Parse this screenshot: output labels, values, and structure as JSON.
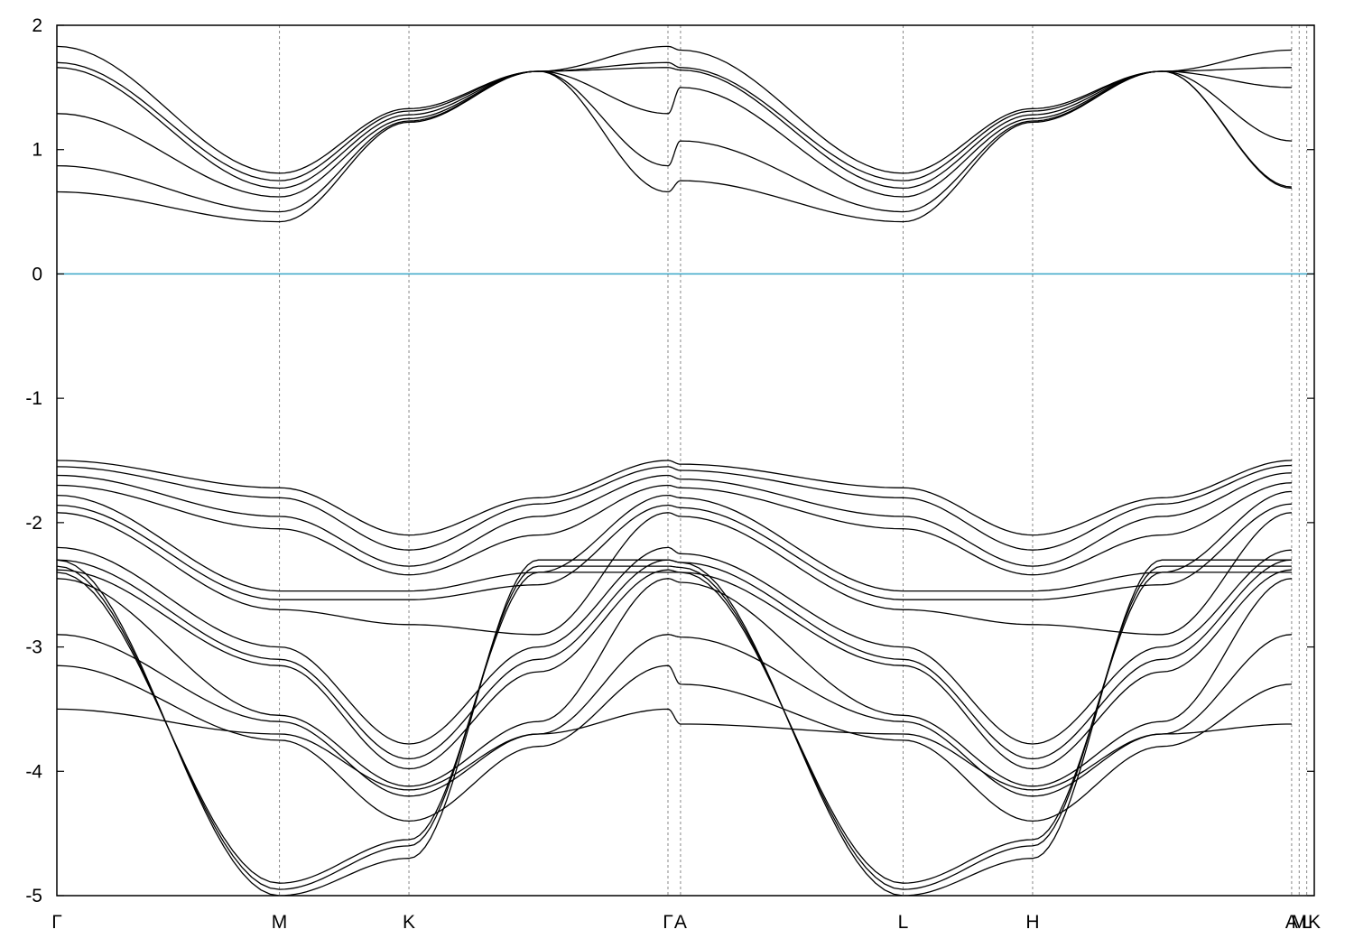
{
  "chart_data": {
    "type": "line",
    "title": "",
    "xlabel": "",
    "ylabel": "",
    "ylim": [
      -5,
      2
    ],
    "xlim": [
      0,
      10
    ],
    "y_ticks": [
      "2",
      "1",
      "0",
      "-1",
      "-2",
      "-3",
      "-4",
      "-5"
    ],
    "y_tick_values": [
      2,
      1,
      0,
      -1,
      -2,
      -3,
      -4,
      -5
    ],
    "k_points": [
      {
        "label": "Γ",
        "x": 0.0
      },
      {
        "label": "M",
        "x": 1.77
      },
      {
        "label": "K",
        "x": 2.8
      },
      {
        "label": "Γ",
        "x": 4.86
      },
      {
        "label": "A",
        "x": 4.96
      },
      {
        "label": "L",
        "x": 6.73
      },
      {
        "label": "H",
        "x": 7.76
      },
      {
        "label": "A",
        "x": 9.82
      },
      {
        "label": "M",
        "x": 9.88
      },
      {
        "label": "L",
        "x": 9.94
      },
      {
        "label": "K",
        "x": 10.0
      }
    ],
    "fermi_level": 0,
    "fermi_color": "#3aa6c8",
    "band_color": "#000000",
    "conduction_bands": [
      {
        "name": "c1",
        "values": [
          0.66,
          0.42,
          1.22,
          1.63,
          0.66,
          0.75,
          0.42,
          1.22,
          1.63,
          0.69
        ]
      },
      {
        "name": "c2",
        "values": [
          0.87,
          0.5,
          1.23,
          1.63,
          0.87,
          1.07,
          0.5,
          1.23,
          1.63,
          0.7
        ]
      },
      {
        "name": "c3",
        "values": [
          1.29,
          0.62,
          1.25,
          1.63,
          1.29,
          1.5,
          0.62,
          1.25,
          1.63,
          1.07
        ]
      },
      {
        "name": "c4",
        "values": [
          1.66,
          0.69,
          1.28,
          1.63,
          1.66,
          1.64,
          0.69,
          1.28,
          1.63,
          1.5
        ]
      },
      {
        "name": "c5",
        "values": [
          1.7,
          0.75,
          1.31,
          1.63,
          1.7,
          1.66,
          0.75,
          1.31,
          1.63,
          1.66
        ]
      },
      {
        "name": "c6",
        "values": [
          1.83,
          0.81,
          1.33,
          1.63,
          1.83,
          1.8,
          0.81,
          1.33,
          1.63,
          1.8
        ]
      }
    ],
    "valence_bands": [
      {
        "name": "v1",
        "values": [
          -1.5,
          -1.72,
          -2.1,
          -1.8,
          -1.5,
          -1.53,
          -1.72,
          -2.1,
          -1.8,
          -1.5
        ]
      },
      {
        "name": "v2",
        "values": [
          -1.55,
          -1.8,
          -2.22,
          -1.85,
          -1.55,
          -1.58,
          -1.8,
          -2.22,
          -1.85,
          -1.54
        ]
      },
      {
        "name": "v3",
        "values": [
          -1.62,
          -1.95,
          -2.35,
          -1.95,
          -1.62,
          -1.65,
          -1.95,
          -2.35,
          -1.95,
          -1.6
        ]
      },
      {
        "name": "v4",
        "values": [
          -1.7,
          -2.05,
          -2.42,
          -2.1,
          -1.7,
          -1.72,
          -2.05,
          -2.42,
          -2.1,
          -1.68
        ]
      },
      {
        "name": "v5",
        "values": [
          -1.78,
          -2.55,
          -2.55,
          -2.4,
          -1.78,
          -1.8,
          -2.55,
          -2.55,
          -2.4,
          -1.75
        ]
      },
      {
        "name": "v6",
        "values": [
          -1.86,
          -2.62,
          -2.62,
          -2.5,
          -1.86,
          -1.88,
          -2.62,
          -2.62,
          -2.5,
          -1.85
        ]
      },
      {
        "name": "v7",
        "values": [
          -1.92,
          -2.7,
          -2.82,
          -2.9,
          -1.92,
          -1.95,
          -2.7,
          -2.82,
          -2.9,
          -1.92
        ]
      },
      {
        "name": "v8",
        "values": [
          -2.2,
          -3.0,
          -3.78,
          -3.0,
          -2.2,
          -2.25,
          -3.0,
          -3.78,
          -3.0,
          -2.22
        ]
      },
      {
        "name": "v9",
        "values": [
          -2.3,
          -3.1,
          -3.9,
          -3.1,
          -2.3,
          -2.32,
          -3.1,
          -3.9,
          -3.1,
          -2.3
        ]
      },
      {
        "name": "v10",
        "values": [
          -2.38,
          -3.15,
          -3.98,
          -3.2,
          -2.38,
          -2.4,
          -3.15,
          -3.98,
          -3.2,
          -2.38
        ]
      },
      {
        "name": "v11",
        "values": [
          -2.45,
          -3.55,
          -4.12,
          -3.6,
          -2.45,
          -2.48,
          -3.55,
          -4.12,
          -3.6,
          -2.45
        ]
      },
      {
        "name": "v12",
        "values": [
          -2.9,
          -3.6,
          -4.2,
          -3.7,
          -2.9,
          -2.92,
          -3.6,
          -4.2,
          -3.7,
          -2.9
        ]
      },
      {
        "name": "v13",
        "values": [
          -3.15,
          -3.75,
          -4.4,
          -3.8,
          -3.15,
          -3.3,
          -3.75,
          -4.4,
          -3.8,
          -3.3
        ]
      },
      {
        "name": "v14",
        "values": [
          -3.5,
          -3.7,
          -4.15,
          -3.7,
          -3.5,
          -3.62,
          -3.7,
          -4.15,
          -3.7,
          -3.62
        ]
      },
      {
        "name": "v15",
        "values": [
          -2.4,
          -4.9,
          -4.55,
          -2.4,
          -2.4,
          -2.4,
          -4.9,
          -4.55,
          -2.4,
          -2.4
        ]
      },
      {
        "name": "v16",
        "values": [
          -2.35,
          -4.95,
          -4.6,
          -2.35,
          -2.35,
          -2.36,
          -4.95,
          -4.6,
          -2.35,
          -2.35
        ]
      },
      {
        "name": "v17",
        "values": [
          -2.3,
          -5.0,
          -4.7,
          -2.3,
          -2.3,
          -2.32,
          -5.0,
          -4.7,
          -2.3,
          -2.3
        ]
      }
    ]
  }
}
